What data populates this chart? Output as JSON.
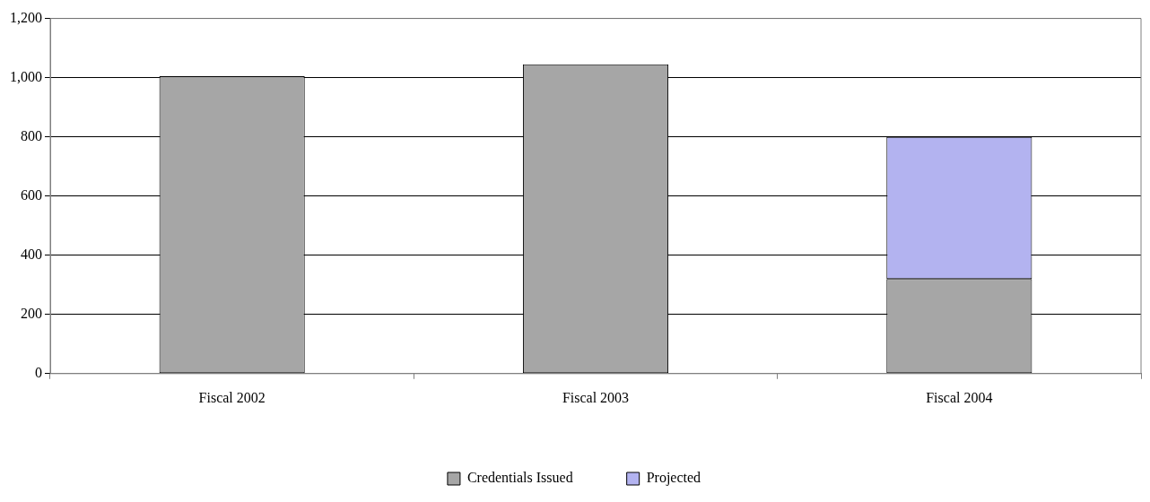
{
  "chart_data": {
    "type": "bar",
    "categories": [
      "Fiscal 2002",
      "Fiscal 2003",
      "Fiscal 2004"
    ],
    "series": [
      {
        "name": "Credentials Issued",
        "color": "#a6a6a6",
        "values": [
          1005,
          1045,
          320
        ]
      },
      {
        "name": "Projected",
        "color": "#b3b3f0",
        "values": [
          null,
          null,
          480
        ]
      }
    ],
    "stacked": true,
    "ylim": [
      0,
      1200
    ],
    "yticks": [
      0,
      200,
      400,
      600,
      800,
      {
        "value": 1000,
        "label": "1,000"
      },
      {
        "value": 1200,
        "label": "1,200"
      }
    ],
    "grid": "y",
    "legend": "bottom"
  }
}
